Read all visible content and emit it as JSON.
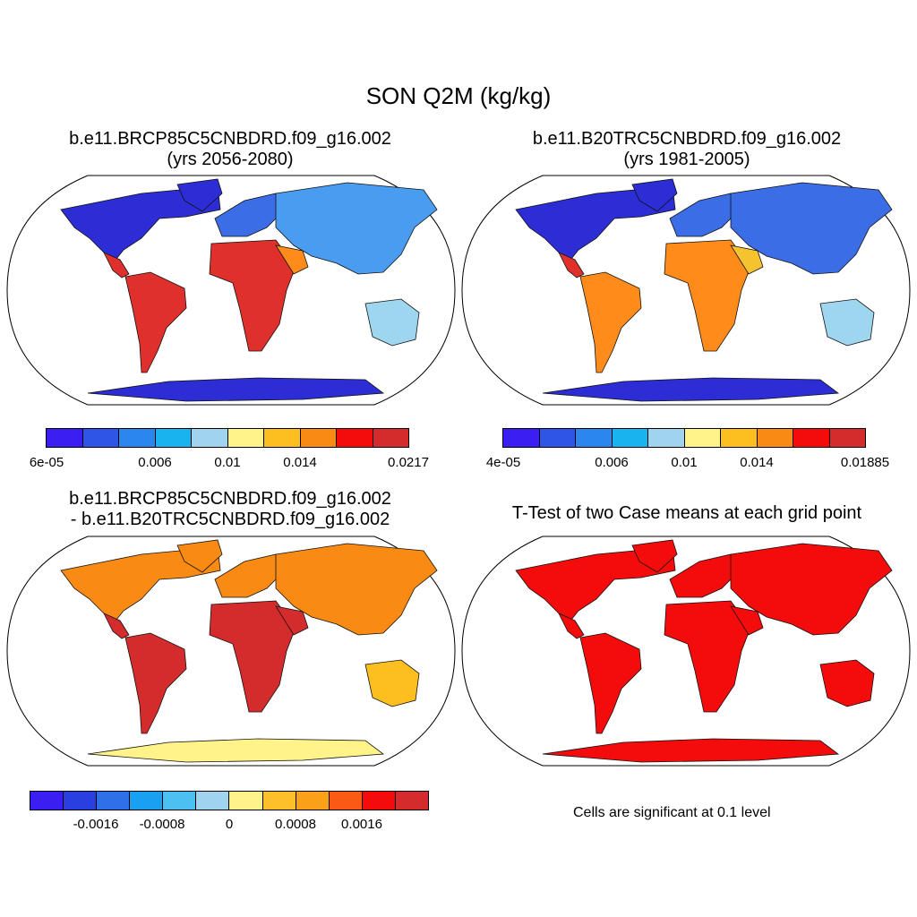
{
  "title": "SON Q2M (kg/kg)",
  "panels": [
    {
      "title_line1": "b.e11.BRCP85C5CNBDRD.f09_g16.002",
      "title_line2": "(yrs 2056-2080)",
      "fill": [
        "#2d2dd6",
        "#3b6ee6",
        "#4a9cf0",
        "#e0302c",
        "#ff8c1a",
        "#f5c330",
        "#9ed6f0"
      ],
      "colorbar": {
        "colors": [
          "#3b1ff2",
          "#2f55e6",
          "#2b86ee",
          "#19b4f0",
          "#9fd3ee",
          "#fff38a",
          "#fdbf1f",
          "#f98a14",
          "#f40c0c",
          "#d42c2c"
        ],
        "labels": [
          "6e-05",
          "0.006",
          "0.01",
          "0.014",
          "0.0217"
        ]
      }
    },
    {
      "title_line1": "b.e11.B20TRC5CNBDRD.f09_g16.002",
      "title_line2": "(yrs 1981-2005)",
      "fill": [
        "#2d2dd6",
        "#3b6ee6",
        "#4a9cf0",
        "#e0302c",
        "#ff8c1a",
        "#f5c330",
        "#9ed6f0"
      ],
      "colorbar": {
        "colors": [
          "#3b1ff2",
          "#2f55e6",
          "#2b86ee",
          "#19b4f0",
          "#9fd3ee",
          "#fff38a",
          "#fdbf1f",
          "#f98a14",
          "#f40c0c",
          "#d42c2c"
        ],
        "labels": [
          "4e-05",
          "0.006",
          "0.01",
          "0.014",
          "0.01885"
        ]
      }
    },
    {
      "title_line1": "b.e11.BRCP85C5CNBDRD.f09_g16.002",
      "title_line2": "- b.e11.B20TRC5CNBDRD.f09_g16.002",
      "fill": [
        "#d42c2c",
        "#f98a14",
        "#fdbf1f",
        "#fff38a"
      ],
      "colorbar": {
        "colors": [
          "#3b1ff2",
          "#2a3fe0",
          "#2f6fe8",
          "#19a0f0",
          "#4cc0f0",
          "#9fd3ee",
          "#fff38a",
          "#fdc02a",
          "#fba019",
          "#fb5a14",
          "#f40c0c",
          "#d42c2c"
        ],
        "labels": [
          "-0.0016",
          "-0.0008",
          "0",
          "0.0008",
          "0.0016"
        ]
      }
    },
    {
      "title_line1": "T-Test of two Case means at each grid point",
      "title_line2": "",
      "fill": [
        "#f40c0c"
      ],
      "note": "Cells are significant at 0.1 level"
    }
  ]
}
